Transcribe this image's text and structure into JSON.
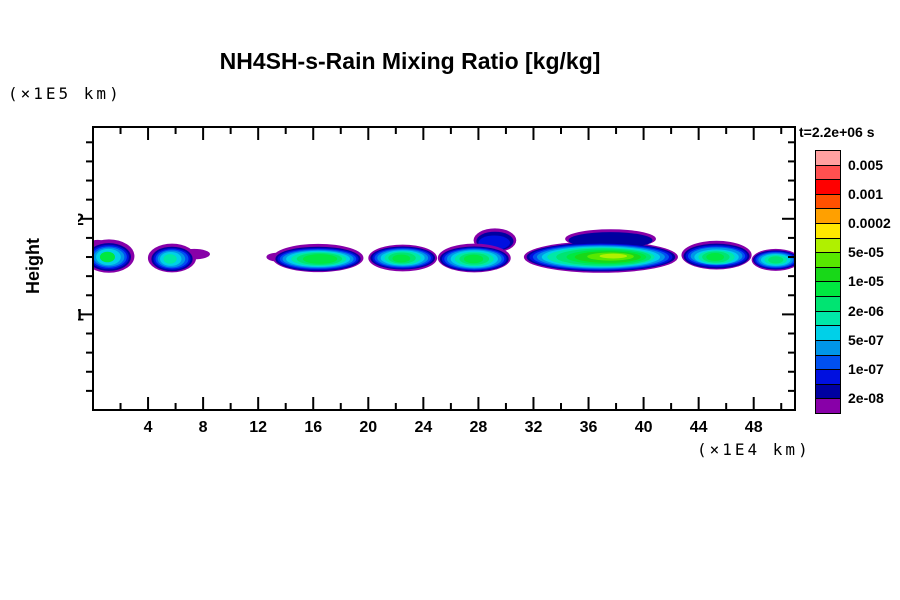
{
  "title": "NH4SH-s-Rain Mixing Ratio [kg/kg]",
  "y_axis_title": "Height",
  "y_unit_label": "(×1E5 km)",
  "x_unit_label": "(×1E4 km)",
  "legend": {
    "time_label": "t=2.2e+06 s",
    "labels": [
      "0.005",
      "0.001",
      "0.0002",
      "5e-05",
      "1e-05",
      "2e-06",
      "5e-07",
      "1e-07",
      "2e-08"
    ],
    "colors": [
      "#FFA0A0",
      "#FF5050",
      "#FF0000",
      "#FF5000",
      "#FFA000",
      "#FFE800",
      "#B0F000",
      "#58E800",
      "#18D818",
      "#00E840",
      "#00E472",
      "#00E8A8",
      "#00D0E8",
      "#0095E8",
      "#0050F0",
      "#0010E0",
      "#0000A0",
      "#8800A8"
    ],
    "boundaries": [
      0.005,
      0.002,
      0.001,
      0.0005,
      0.0002,
      0.0001,
      5e-05,
      2e-05,
      1e-05,
      5e-06,
      2e-06,
      1e-06,
      5e-07,
      2e-07,
      1e-07,
      5e-08,
      2e-08
    ]
  },
  "chart_data": {
    "type": "filled_contour",
    "title": "NH4SH-s-Rain Mixing Ratio [kg/kg]",
    "ylabel": "Height",
    "y_unit": "(×1E5 km)",
    "x_unit": "(×1E4 km)",
    "time_annotation": "t=2.2e+06 s",
    "grid": false,
    "legend_position": "right",
    "x_axis": {
      "min": 0,
      "max": 51,
      "minor_step": 2,
      "major_step": 4,
      "major_tick_labels": [
        "4",
        "8",
        "12",
        "16",
        "20",
        "24",
        "28",
        "32",
        "36",
        "40",
        "44",
        "48"
      ]
    },
    "y_axis": {
      "min": 0,
      "max": 2.96,
      "minor_step": 0.2,
      "major_ticks": [
        1,
        2
      ],
      "major_tick_labels": [
        "1",
        "2"
      ]
    },
    "levels": [
      0.005,
      0.002,
      0.001,
      0.0005,
      0.0002,
      0.0001,
      5e-05,
      2e-05,
      1e-05,
      5e-06,
      2e-06,
      1e-06,
      5e-07,
      2e-07,
      1e-07,
      5e-08,
      2e-08
    ],
    "clouds": [
      {
        "x_range": [
          0,
          2.9
        ],
        "y_center": 1.6,
        "peak_value": "~1e-05",
        "layers": [
          [
            17,
            0.35,
            1.73,
            0.65,
            0.05
          ],
          [
            17,
            1.16,
            1.61,
            1.85,
            0.175
          ],
          [
            16,
            1.16,
            1.6,
            1.6,
            0.145
          ],
          [
            15,
            1.16,
            1.6,
            1.45,
            0.128
          ],
          [
            14,
            1.16,
            1.6,
            1.3,
            0.113
          ],
          [
            13,
            1.16,
            1.6,
            1.12,
            0.099
          ],
          [
            12,
            1.12,
            1.6,
            0.9,
            0.085
          ],
          [
            9,
            1.05,
            1.6,
            0.55,
            0.055
          ]
        ]
      },
      {
        "x_range": [
          4.0,
          8.4
        ],
        "y_center": 1.58,
        "peak_value": "~1e-06",
        "layers": [
          [
            17,
            7.35,
            1.63,
            1.15,
            0.055
          ],
          [
            17,
            5.74,
            1.59,
            1.75,
            0.15
          ],
          [
            16,
            5.74,
            1.58,
            1.5,
            0.128
          ],
          [
            15,
            5.74,
            1.58,
            1.35,
            0.113
          ],
          [
            14,
            5.74,
            1.58,
            1.2,
            0.1
          ],
          [
            13,
            5.7,
            1.58,
            1.0,
            0.088
          ],
          [
            12,
            5.65,
            1.58,
            0.78,
            0.073
          ],
          [
            11,
            5.6,
            1.58,
            0.48,
            0.05
          ]
        ]
      },
      {
        "x_range": [
          13.0,
          19.7
        ],
        "y_center": 1.58,
        "peak_value": "~1e-05",
        "layers": [
          [
            17,
            13.35,
            1.6,
            0.75,
            0.045
          ],
          [
            17,
            16.35,
            1.59,
            3.3,
            0.148
          ],
          [
            16,
            16.35,
            1.58,
            3.1,
            0.128
          ],
          [
            15,
            16.35,
            1.58,
            2.95,
            0.115
          ],
          [
            14,
            16.35,
            1.58,
            2.78,
            0.104
          ],
          [
            13,
            16.35,
            1.58,
            2.58,
            0.094
          ],
          [
            12,
            16.35,
            1.58,
            2.32,
            0.084
          ],
          [
            11,
            16.4,
            1.58,
            2.0,
            0.074
          ],
          [
            10,
            16.45,
            1.58,
            1.65,
            0.063
          ],
          [
            9,
            16.5,
            1.58,
            1.25,
            0.05
          ]
        ]
      },
      {
        "x_range": [
          20.0,
          25.0
        ],
        "y_center": 1.59,
        "peak_value": "~1e-05",
        "layers": [
          [
            17,
            22.5,
            1.59,
            2.5,
            0.14
          ],
          [
            16,
            22.5,
            1.59,
            2.35,
            0.12
          ],
          [
            15,
            22.5,
            1.59,
            2.2,
            0.11
          ],
          [
            14,
            22.5,
            1.59,
            2.05,
            0.1
          ],
          [
            13,
            22.5,
            1.59,
            1.85,
            0.09
          ],
          [
            12,
            22.5,
            1.59,
            1.6,
            0.08
          ],
          [
            11,
            22.5,
            1.59,
            1.32,
            0.07
          ],
          [
            10,
            22.45,
            1.59,
            1.0,
            0.058
          ],
          [
            9,
            22.4,
            1.585,
            0.65,
            0.042
          ]
        ]
      },
      {
        "x_range": [
          25.0,
          30.7
        ],
        "y_center": 1.58,
        "peak_value": "~1e-05",
        "layers": [
          [
            17,
            29.2,
            1.775,
            1.55,
            0.125
          ],
          [
            16,
            29.2,
            1.765,
            1.35,
            0.1
          ],
          [
            15,
            29.15,
            1.75,
            1.15,
            0.075
          ],
          [
            17,
            27.7,
            1.59,
            2.65,
            0.15
          ],
          [
            16,
            27.7,
            1.58,
            2.5,
            0.13
          ],
          [
            15,
            27.7,
            1.58,
            2.35,
            0.12
          ],
          [
            14,
            27.7,
            1.58,
            2.18,
            0.11
          ],
          [
            13,
            27.7,
            1.58,
            1.98,
            0.1
          ],
          [
            12,
            27.7,
            1.58,
            1.72,
            0.09
          ],
          [
            11,
            27.7,
            1.58,
            1.42,
            0.075
          ],
          [
            10,
            27.7,
            1.58,
            1.08,
            0.06
          ],
          [
            9,
            27.65,
            1.58,
            0.7,
            0.045
          ]
        ]
      },
      {
        "x_range": [
          31.3,
          42.5
        ],
        "y_center": 1.6,
        "peak_value": "~3e-05",
        "layers": [
          [
            17,
            37.6,
            1.79,
            3.3,
            0.1
          ],
          [
            17,
            36.9,
            1.6,
            5.6,
            0.165
          ],
          [
            16,
            37.6,
            1.775,
            3.05,
            0.085
          ],
          [
            16,
            36.9,
            1.6,
            5.4,
            0.15
          ],
          [
            15,
            36.9,
            1.6,
            5.2,
            0.14
          ],
          [
            14,
            36.9,
            1.6,
            4.95,
            0.13
          ],
          [
            13,
            36.9,
            1.6,
            4.65,
            0.12
          ],
          [
            12,
            36.9,
            1.6,
            4.3,
            0.11
          ],
          [
            11,
            36.9,
            1.6,
            3.9,
            0.1
          ],
          [
            10,
            37.1,
            1.6,
            3.45,
            0.09
          ],
          [
            9,
            37.3,
            1.6,
            2.9,
            0.075
          ],
          [
            8,
            37.4,
            1.6,
            2.4,
            0.06
          ],
          [
            7,
            37.6,
            1.605,
            1.7,
            0.042
          ],
          [
            6,
            37.8,
            1.61,
            1.0,
            0.025
          ]
        ]
      },
      {
        "x_range": [
          42.7,
          47.9
        ],
        "y_center": 1.61,
        "peak_value": "~1e-05",
        "layers": [
          [
            17,
            45.3,
            1.62,
            2.55,
            0.15
          ],
          [
            16,
            45.3,
            1.61,
            2.4,
            0.13
          ],
          [
            15,
            45.3,
            1.61,
            2.25,
            0.115
          ],
          [
            14,
            45.3,
            1.61,
            2.08,
            0.1
          ],
          [
            13,
            45.3,
            1.61,
            1.88,
            0.09
          ],
          [
            12,
            45.3,
            1.6,
            1.62,
            0.08
          ],
          [
            11,
            45.3,
            1.6,
            1.32,
            0.07
          ],
          [
            10,
            45.25,
            1.6,
            1.0,
            0.058
          ],
          [
            9,
            45.2,
            1.6,
            0.65,
            0.042
          ]
        ]
      },
      {
        "x_range": [
          47.8,
          51.0
        ],
        "y_center": 1.57,
        "peak_value": "~2e-06",
        "layers": [
          [
            17,
            49.6,
            1.57,
            1.75,
            0.115
          ],
          [
            16,
            49.6,
            1.57,
            1.65,
            0.1
          ],
          [
            15,
            49.6,
            1.57,
            1.55,
            0.09
          ],
          [
            14,
            49.6,
            1.57,
            1.42,
            0.082
          ],
          [
            13,
            49.6,
            1.57,
            1.27,
            0.072
          ],
          [
            12,
            49.6,
            1.57,
            1.08,
            0.062
          ],
          [
            11,
            49.6,
            1.57,
            0.82,
            0.05
          ],
          [
            10,
            49.6,
            1.57,
            0.55,
            0.038
          ]
        ]
      }
    ]
  }
}
